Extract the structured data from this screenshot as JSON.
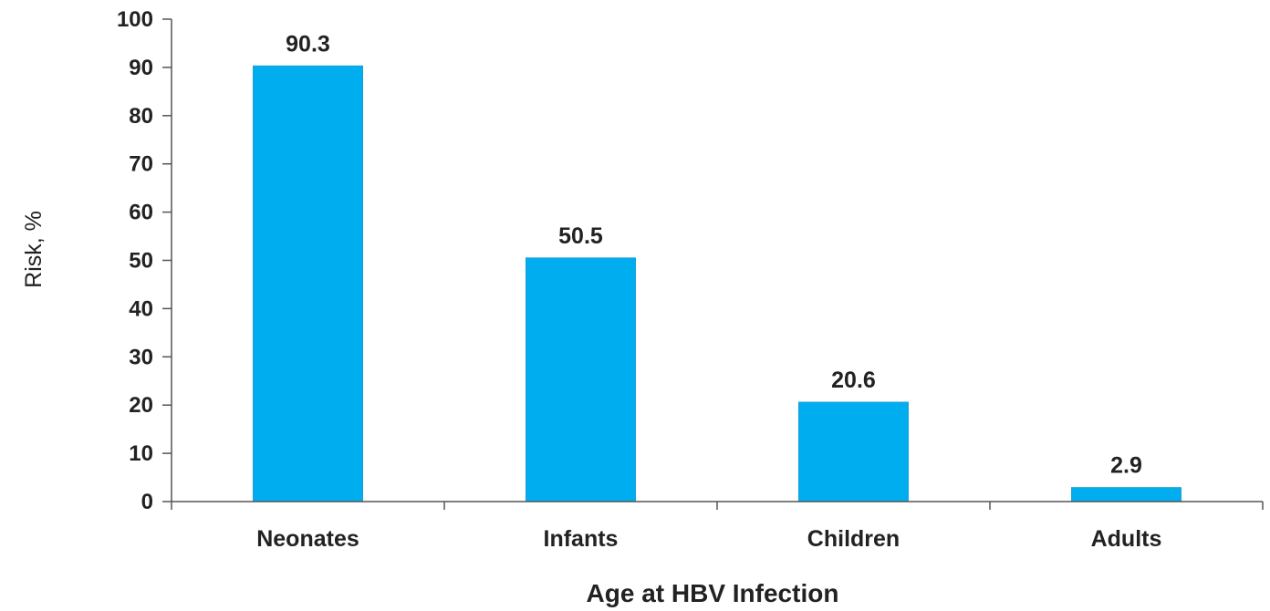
{
  "chart_data": {
    "type": "bar",
    "categories": [
      "Neonates",
      "Infants",
      "Children",
      "Adults"
    ],
    "values": [
      90.3,
      50.5,
      20.6,
      2.9
    ],
    "value_labels": [
      "90.3",
      "50.5",
      "20.6",
      "2.9"
    ],
    "title": "",
    "xlabel": "Age at HBV Infection",
    "ylabel": "Risk, %",
    "ylim": [
      0,
      100
    ],
    "yticks": [
      0,
      10,
      20,
      30,
      40,
      50,
      60,
      70,
      80,
      90,
      100
    ],
    "grid": false,
    "bar_color": "#00aeef",
    "axis_color": "#555555"
  }
}
